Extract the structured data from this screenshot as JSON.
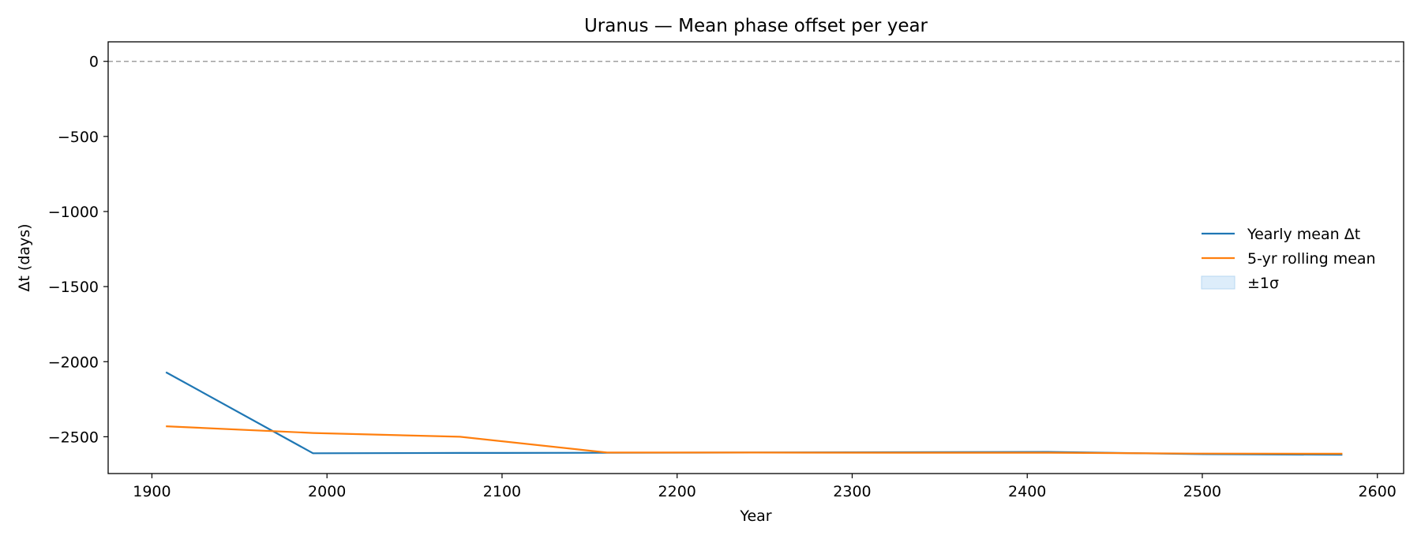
{
  "chart_data": {
    "type": "line",
    "title": "Uranus — Mean phase offset per year",
    "xlabel": "Year",
    "ylabel": "Δt (days)",
    "xlim": [
      1875,
      2615
    ],
    "ylim": [
      -2745,
      130
    ],
    "xticks": [
      1900,
      2000,
      2100,
      2200,
      2300,
      2400,
      2500,
      2600
    ],
    "yticks": [
      0,
      -500,
      -1000,
      -1500,
      -2000,
      -2500
    ],
    "xtick_labels": [
      "1900",
      "2000",
      "2100",
      "2200",
      "2300",
      "2400",
      "2500",
      "2600"
    ],
    "ytick_labels": [
      "0",
      "−500",
      "−1000",
      "−1500",
      "−2000",
      "−2500"
    ],
    "reference_line": {
      "y": 0,
      "style": "dashed",
      "color": "#a0a0a0"
    },
    "grid": false,
    "legend_position": "center-right",
    "series": [
      {
        "name": "Yearly mean Δt",
        "color": "#1f77b4",
        "x": [
          1908,
          1992,
          2076,
          2160,
          2244,
          2328,
          2412,
          2496,
          2580
        ],
        "y": [
          -2070,
          -2610,
          -2608,
          -2607,
          -2605,
          -2603,
          -2601,
          -2615,
          -2620
        ]
      },
      {
        "name": "5-yr rolling mean",
        "color": "#ff7f0e",
        "x": [
          1908,
          1992,
          2076,
          2160,
          2244,
          2328,
          2412,
          2496,
          2580
        ],
        "y": [
          -2430,
          -2475,
          -2500,
          -2605,
          -2605,
          -2606,
          -2606,
          -2612,
          -2613
        ]
      }
    ],
    "band": {
      "name": "±1σ",
      "color": "#cfe5f8"
    }
  }
}
